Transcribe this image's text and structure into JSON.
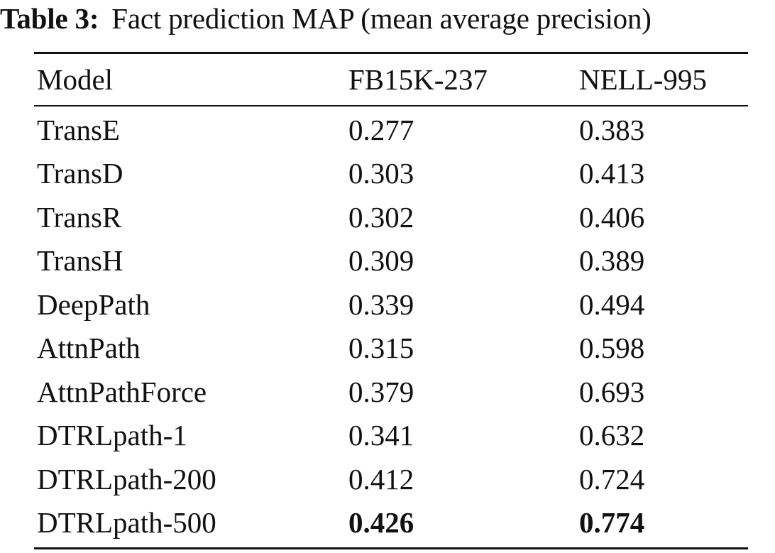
{
  "caption": {
    "label": "Table 3:",
    "text": "Fact prediction MAP (mean average precision)"
  },
  "table": {
    "columns": [
      "Model",
      "FB15K-237",
      "NELL-995"
    ],
    "rows": [
      {
        "model": "TransE",
        "fb15k_237": "0.277",
        "nell_995": "0.383"
      },
      {
        "model": "TransD",
        "fb15k_237": "0.303",
        "nell_995": "0.413"
      },
      {
        "model": "TransR",
        "fb15k_237": "0.302",
        "nell_995": "0.406"
      },
      {
        "model": "TransH",
        "fb15k_237": "0.309",
        "nell_995": "0.389"
      },
      {
        "model": "DeepPath",
        "fb15k_237": "0.339",
        "nell_995": "0.494"
      },
      {
        "model": "AttnPath",
        "fb15k_237": "0.315",
        "nell_995": "0.598"
      },
      {
        "model": "AttnPathForce",
        "fb15k_237": "0.379",
        "nell_995": "0.693"
      },
      {
        "model": "DTRLpath-1",
        "fb15k_237": "0.341",
        "nell_995": "0.632"
      },
      {
        "model": "DTRLpath-200",
        "fb15k_237": "0.412",
        "nell_995": "0.724"
      },
      {
        "model": "DTRLpath-500",
        "fb15k_237": "0.426",
        "nell_995": "0.774"
      }
    ]
  }
}
